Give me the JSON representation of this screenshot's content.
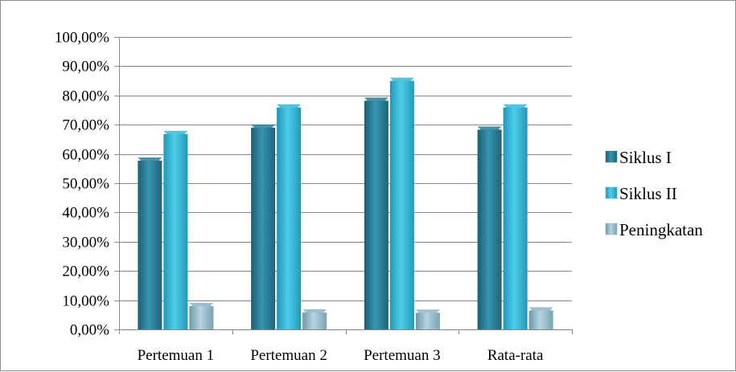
{
  "chart_data": {
    "type": "bar",
    "categories": [
      "Pertemuan 1",
      "Pertemuan 2",
      "Pertemuan 3",
      "Rata-rata"
    ],
    "series": [
      {
        "name": "Siklus I",
        "values": [
          58.8,
          70.1,
          79.3,
          69.4
        ],
        "color": "#2a7e95"
      },
      {
        "name": "Siklus II",
        "values": [
          67.9,
          77.0,
          86.1,
          77.0
        ],
        "color": "#37b8d6"
      },
      {
        "name": "Peningkatan",
        "values": [
          9.1,
          6.9,
          6.8,
          7.6
        ],
        "color": "#8cb4c4"
      }
    ],
    "ylim": [
      0,
      100
    ],
    "yticks": [
      "0,00%",
      "10,00%",
      "20,00%",
      "30,00%",
      "40,00%",
      "50,00%",
      "60,00%",
      "70,00%",
      "80,00%",
      "90,00%",
      "100,00%"
    ],
    "legend_position": "right",
    "grid": true
  }
}
